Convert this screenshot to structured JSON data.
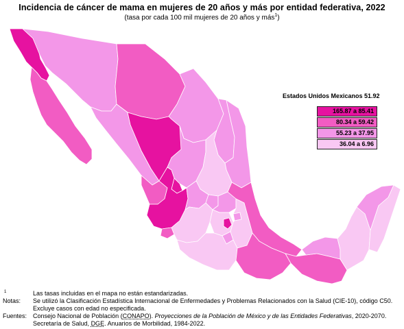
{
  "title": "Incidencia de cáncer de mama en mujeres de 20 años y más por entidad federativa, 2022",
  "subtitle": "(tasa por cada 100 mil mujeres de 20 años y más",
  "subtitle_sup": "1",
  "subtitle_close": ")",
  "colors": {
    "c1": "#e612a0",
    "c2": "#f25cc3",
    "c3": "#f397e8",
    "c4": "#f9c8f3"
  },
  "legend": {
    "title": "Estados Unidos Mexicanos 51.92",
    "items": [
      {
        "label": "165.87 a 85.41",
        "color": "#e612a0"
      },
      {
        "label": "80.34 a 59.42",
        "color": "#f25cc3"
      },
      {
        "label": "55.23 a 37.95",
        "color": "#f397e8"
      },
      {
        "label": "36.04 a 6.96",
        "color": "#f9c8f3"
      }
    ]
  },
  "states": [
    {
      "name": "Baja California",
      "class": "c1"
    },
    {
      "name": "Baja California Sur",
      "class": "c2"
    },
    {
      "name": "Sonora",
      "class": "c3"
    },
    {
      "name": "Chihuahua",
      "class": "c2"
    },
    {
      "name": "Coahuila",
      "class": "c3"
    },
    {
      "name": "Nuevo León",
      "class": "c3"
    },
    {
      "name": "Tamaulipas",
      "class": "c3"
    },
    {
      "name": "Sinaloa",
      "class": "c3"
    },
    {
      "name": "Durango",
      "class": "c1"
    },
    {
      "name": "Zacatecas",
      "class": "c3"
    },
    {
      "name": "San Luis Potosí",
      "class": "c4"
    },
    {
      "name": "Nayarit",
      "class": "c2"
    },
    {
      "name": "Aguascalientes",
      "class": "c1"
    },
    {
      "name": "Jalisco",
      "class": "c1"
    },
    {
      "name": "Guanajuato",
      "class": "c3"
    },
    {
      "name": "Querétaro",
      "class": "c3"
    },
    {
      "name": "Hidalgo",
      "class": "c3"
    },
    {
      "name": "Colima",
      "class": "c2"
    },
    {
      "name": "Michoacán",
      "class": "c4"
    },
    {
      "name": "México",
      "class": "c4"
    },
    {
      "name": "Ciudad de México",
      "class": "c1"
    },
    {
      "name": "Morelos",
      "class": "c3"
    },
    {
      "name": "Tlaxcala",
      "class": "c3"
    },
    {
      "name": "Puebla",
      "class": "c4"
    },
    {
      "name": "Veracruz",
      "class": "c2"
    },
    {
      "name": "Guerrero",
      "class": "c4"
    },
    {
      "name": "Oaxaca",
      "class": "c2"
    },
    {
      "name": "Chiapas",
      "class": "c2"
    },
    {
      "name": "Tabasco",
      "class": "c3"
    },
    {
      "name": "Campeche",
      "class": "c4"
    },
    {
      "name": "Yucatán",
      "class": "c3"
    },
    {
      "name": "Quintana Roo",
      "class": "c4"
    }
  ],
  "notes": {
    "footnote_mark": "1",
    "footnote": "Las tasas incluidas en el mapa no están estandarizadas.",
    "notes_label": "Notas:",
    "notes_line1": "Se utilizó la Clasificación Estadística Internacional de Enfermedades y Problemas Relacionados con la Salud (CIE-10), código C50.",
    "notes_line2": "Excluye casos con edad no especificada.",
    "sources_label": "Fuentes:",
    "source1_pre": "Consejo Nacional de Población (",
    "source1_abbr": "CONAPO",
    "source1_mid": "). ",
    "source1_title": "Proyecciones de la Población de México y de las Entidades Federativas",
    "source1_post": ", 2020-2070.",
    "source2_pre": "Secretaría de Salud, ",
    "source2_abbr": "DGE",
    "source2_post": ". Anuarios de Morbilidad, 1984-2022."
  }
}
